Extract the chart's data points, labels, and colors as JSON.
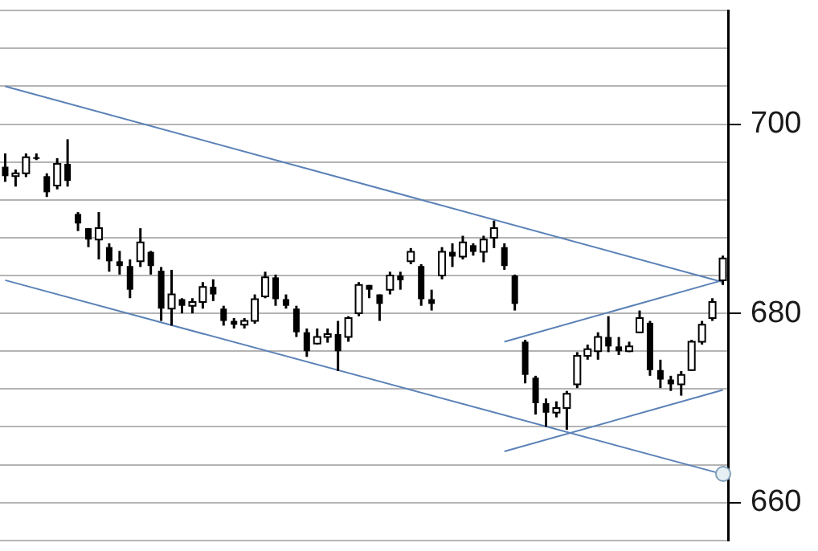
{
  "chart_data": {
    "type": "candlestick",
    "categories": [
      null,
      null,
      null,
      null,
      null,
      null,
      null,
      null,
      null,
      null,
      null,
      null,
      null,
      null,
      null,
      null,
      null,
      null,
      null,
      null,
      null,
      null,
      null,
      null,
      null,
      null,
      null,
      null,
      null,
      null,
      null,
      null,
      null,
      null,
      null,
      null,
      null,
      null,
      null,
      null,
      null,
      null,
      null,
      null,
      null,
      null,
      null,
      null,
      null,
      null,
      null,
      null,
      null,
      null,
      null,
      null,
      null,
      null,
      null,
      null,
      null,
      null,
      null,
      null,
      null,
      null,
      null,
      null,
      null,
      null
    ],
    "ohlc": [
      [
        695.5,
        696.9,
        693.9,
        694.5
      ],
      [
        694.5,
        695.2,
        693.4,
        694.8
      ],
      [
        694.8,
        696.9,
        694.4,
        696.5
      ],
      [
        696.5,
        696.9,
        696.2,
        696.4
      ],
      [
        694.5,
        694.8,
        692.3,
        692.8
      ],
      [
        693.5,
        696.4,
        693.1,
        695.8
      ],
      [
        695.8,
        698.4,
        693.4,
        694.0
      ],
      [
        690.5,
        690.7,
        688.7,
        689.5
      ],
      [
        689.0,
        689.0,
        687.0,
        687.8
      ],
      [
        687.8,
        690.7,
        685.7,
        689.0
      ],
      [
        687.0,
        687.4,
        684.4,
        685.5
      ],
      [
        685.5,
        686.6,
        684.1,
        685.0
      ],
      [
        685.0,
        685.7,
        681.6,
        682.5
      ],
      [
        685.5,
        689.0,
        684.9,
        687.5
      ],
      [
        686.5,
        686.6,
        684.1,
        685.0
      ],
      [
        684.5,
        684.9,
        679.2,
        680.5
      ],
      [
        680.5,
        684.6,
        678.7,
        682.0
      ],
      [
        681.5,
        681.6,
        680.0,
        680.8
      ],
      [
        680.8,
        681.6,
        680.0,
        681.2
      ],
      [
        681.2,
        683.3,
        680.5,
        682.8
      ],
      [
        682.8,
        683.6,
        681.3,
        682.0
      ],
      [
        680.5,
        680.8,
        678.7,
        679.2
      ],
      [
        679.2,
        679.5,
        678.4,
        678.8
      ],
      [
        678.8,
        679.5,
        678.4,
        679.2
      ],
      [
        679.2,
        682.0,
        678.9,
        681.5
      ],
      [
        681.8,
        684.4,
        681.6,
        683.8
      ],
      [
        683.8,
        684.1,
        680.8,
        681.5
      ],
      [
        681.5,
        682.0,
        680.5,
        680.8
      ],
      [
        680.5,
        680.8,
        677.5,
        678.0
      ],
      [
        678.0,
        678.4,
        675.4,
        676.0
      ],
      [
        676.8,
        678.4,
        676.7,
        677.5
      ],
      [
        677.5,
        678.4,
        676.9,
        677.8
      ],
      [
        677.8,
        679.2,
        673.9,
        676.0
      ],
      [
        677.5,
        679.7,
        677.0,
        679.5
      ],
      [
        680.0,
        683.3,
        679.7,
        683.0
      ],
      [
        683.0,
        683.0,
        681.6,
        682.5
      ],
      [
        682.0,
        682.0,
        679.2,
        681.0
      ],
      [
        682.5,
        684.4,
        682.0,
        684.0
      ],
      [
        684.0,
        684.4,
        682.5,
        683.5
      ],
      [
        685.5,
        686.9,
        685.2,
        686.5
      ],
      [
        685.0,
        685.2,
        680.8,
        681.5
      ],
      [
        681.5,
        682.5,
        680.3,
        681.0
      ],
      [
        684.0,
        687.0,
        683.6,
        686.5
      ],
      [
        686.5,
        687.4,
        684.9,
        686.0
      ],
      [
        686.0,
        688.2,
        685.7,
        687.5
      ],
      [
        687.2,
        687.4,
        686.1,
        686.5
      ],
      [
        686.5,
        688.2,
        685.4,
        687.8
      ],
      [
        688.0,
        689.8,
        686.9,
        689.0
      ],
      [
        687.0,
        687.4,
        684.6,
        685.0
      ],
      [
        684.0,
        684.1,
        680.3,
        681.0
      ],
      [
        677.0,
        677.2,
        672.6,
        673.5
      ],
      [
        673.2,
        673.4,
        669.3,
        670.5
      ],
      [
        670.5,
        671.0,
        668.0,
        669.5
      ],
      [
        669.5,
        670.7,
        669.0,
        670.0
      ],
      [
        670.0,
        671.8,
        667.7,
        671.5
      ],
      [
        672.5,
        675.9,
        672.1,
        675.5
      ],
      [
        675.5,
        676.7,
        675.1,
        676.2
      ],
      [
        676.0,
        678.0,
        675.1,
        677.5
      ],
      [
        677.5,
        679.7,
        675.9,
        676.5
      ],
      [
        676.5,
        677.5,
        675.6,
        676.0
      ],
      [
        676.0,
        677.0,
        675.9,
        676.5
      ],
      [
        678.0,
        680.3,
        677.9,
        679.5
      ],
      [
        679.0,
        679.2,
        673.4,
        674.0
      ],
      [
        674.0,
        675.1,
        672.1,
        673.0
      ],
      [
        673.0,
        673.4,
        671.8,
        672.5
      ],
      [
        672.5,
        673.9,
        671.3,
        673.5
      ],
      [
        674.0,
        677.2,
        673.9,
        677.0
      ],
      [
        677.0,
        679.2,
        676.7,
        678.8
      ],
      [
        679.5,
        681.6,
        679.2,
        681.2
      ],
      [
        683.5,
        686.1,
        683.0,
        685.8
      ]
    ],
    "series": [
      {
        "type": "line",
        "color": "#5b82b8",
        "values": [
          704.0,
          null,
          null,
          null,
          null,
          null,
          null,
          null,
          null,
          null,
          null,
          null,
          null,
          null,
          null,
          null,
          null,
          null,
          null,
          null,
          null,
          null,
          null,
          null,
          null,
          null,
          null,
          null,
          null,
          null,
          null,
          null,
          null,
          null,
          null,
          null,
          null,
          null,
          null,
          null,
          null,
          null,
          null,
          null,
          null,
          null,
          null,
          null,
          null,
          null,
          null,
          null,
          null,
          null,
          null,
          null,
          null,
          null,
          null,
          null,
          null,
          null,
          null,
          null,
          null,
          null,
          null,
          null,
          null,
          683.3
        ]
      },
      {
        "type": "line",
        "color": "#5b82b8",
        "values": [
          683.5,
          null,
          null,
          null,
          null,
          null,
          null,
          null,
          null,
          null,
          null,
          null,
          null,
          null,
          null,
          null,
          null,
          null,
          null,
          null,
          null,
          null,
          null,
          null,
          null,
          null,
          null,
          null,
          null,
          null,
          null,
          null,
          null,
          null,
          null,
          null,
          null,
          null,
          null,
          null,
          null,
          null,
          null,
          null,
          null,
          null,
          null,
          null,
          null,
          null,
          null,
          null,
          null,
          null,
          null,
          null,
          null,
          null,
          null,
          null,
          null,
          null,
          null,
          null,
          null,
          null,
          null,
          null,
          null,
          663.0
        ]
      },
      {
        "type": "line",
        "color": "#5b82b8",
        "values": [
          null,
          null,
          null,
          null,
          null,
          null,
          null,
          null,
          null,
          null,
          null,
          null,
          null,
          null,
          null,
          null,
          null,
          null,
          null,
          null,
          null,
          null,
          null,
          null,
          null,
          null,
          null,
          null,
          null,
          null,
          null,
          null,
          null,
          null,
          null,
          null,
          null,
          null,
          null,
          null,
          null,
          null,
          null,
          null,
          null,
          null,
          null,
          null,
          677.0,
          null,
          null,
          null,
          null,
          null,
          null,
          null,
          null,
          null,
          null,
          null,
          null,
          null,
          null,
          null,
          null,
          null,
          null,
          null,
          null,
          683.5
        ]
      },
      {
        "type": "line",
        "color": "#5b82b8",
        "values": [
          null,
          null,
          null,
          null,
          null,
          null,
          null,
          null,
          null,
          null,
          null,
          null,
          null,
          null,
          null,
          null,
          null,
          null,
          null,
          null,
          null,
          null,
          null,
          null,
          null,
          null,
          null,
          null,
          null,
          null,
          null,
          null,
          null,
          null,
          null,
          null,
          null,
          null,
          null,
          null,
          null,
          null,
          null,
          null,
          null,
          null,
          null,
          null,
          665.4,
          null,
          null,
          null,
          null,
          null,
          null,
          null,
          null,
          null,
          null,
          null,
          null,
          null,
          null,
          null,
          null,
          null,
          null,
          null,
          null,
          671.9
        ]
      }
    ],
    "ylim": [
      656,
      712
    ],
    "yticks": [
      {
        "value": 656,
        "label": null
      },
      660,
      {
        "value": 664,
        "label": null
      },
      {
        "value": 668,
        "label": null
      },
      {
        "value": 672,
        "label": null
      },
      {
        "value": 676,
        "label": null
      },
      680,
      {
        "value": 684,
        "label": null
      },
      {
        "value": 688,
        "label": null
      },
      {
        "value": 692,
        "label": null
      },
      {
        "value": 696,
        "label": null
      },
      700,
      {
        "value": 704,
        "label": null
      },
      {
        "value": 708,
        "label": null
      },
      {
        "value": 712,
        "label": null
      }
    ],
    "grid": "y",
    "tick_labels": "y",
    "legend": false
  }
}
